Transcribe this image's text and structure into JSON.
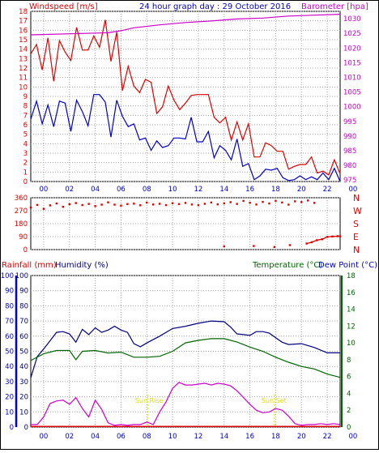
{
  "colors": {
    "frame": "#000000",
    "grid": "#a0a0a0",
    "wind_gust": "#e00000",
    "wind_avg": "#0000cc",
    "barometer": "#cc00cc",
    "direction": "#e00000",
    "rainfall": "#e00000",
    "humidity": "#000080",
    "temperature": "#006400",
    "dew_point": "#0000cc",
    "sun": "#dddd00",
    "blue_axis": "#0000dd",
    "green_axis": "#006400",
    "magenta_axis": "#cc00cc"
  },
  "chart_data": [
    {
      "type": "line",
      "title": "24 hour graph day : 29 October 2016",
      "ylabel_left": "Windspeed [m/s]",
      "ylabel_right": "Barometer [hpa]",
      "x_tick_labels": [
        "00",
        "02",
        "04",
        "06",
        "08",
        "10",
        "12",
        "14",
        "16",
        "18",
        "20",
        "22",
        "00"
      ],
      "y_left_ticks": [
        "0",
        "1",
        "2",
        "3",
        "4",
        "5",
        "6",
        "7",
        "8",
        "9",
        "10",
        "11",
        "12",
        "13",
        "14",
        "15",
        "16",
        "17",
        "18"
      ],
      "y_right_ticks": [
        "975",
        "980",
        "985",
        "990",
        "995",
        "1000",
        "1005",
        "1010",
        "1015",
        "1020",
        "1025",
        "1030"
      ],
      "ylim_left": [
        0,
        18
      ],
      "ylim_right": [
        974.5,
        1032.5
      ],
      "grid": true,
      "series": [
        {
          "key": "wind_gust",
          "values": [
            13.5,
            14.5,
            11.8,
            15.2,
            10.6,
            14.9,
            13.7,
            12.8,
            16.3,
            13.9,
            13.9,
            15.4,
            14.2,
            17.1,
            12.7,
            15.8,
            9.6,
            12.2,
            10.1,
            9.4,
            10.8,
            10.5,
            7.2,
            7.9,
            10.1,
            8.6,
            7.6,
            8.3,
            9.1,
            9.2,
            9.2,
            9.2,
            6.8,
            6.2,
            6.8,
            4.4,
            6.3,
            4.4,
            6.1,
            2.6,
            2.6,
            4.1,
            3.8,
            3.2,
            3.2,
            1.3,
            1.6,
            1.8,
            1.8,
            2.6,
            0.9,
            1.1,
            0.7,
            2.3,
            0.8
          ],
          "y_axis": "left"
        },
        {
          "key": "wind_avg",
          "values": [
            6.6,
            8.5,
            6.1,
            8.1,
            5.8,
            8.5,
            8.3,
            5.3,
            8.6,
            7.4,
            5.9,
            9.2,
            9.2,
            8.4,
            4.7,
            8.6,
            6.9,
            5.8,
            6.1,
            4.4,
            4.6,
            3.3,
            4.3,
            3.6,
            3.8,
            4.6,
            4.6,
            4.5,
            6.8,
            4.2,
            4.2,
            5.3,
            2.5,
            3.8,
            3.3,
            2.3,
            4.5,
            1.6,
            1.9,
            0.2,
            0.6,
            1.3,
            1.2,
            1.4,
            0.4,
            0.1,
            0.2,
            0.6,
            0.2,
            0.5,
            0.2,
            0.9,
            0.2,
            1.4,
            0.0
          ],
          "y_axis": "left"
        },
        {
          "key": "barometer",
          "x": [
            0.0,
            6.0,
            7.0,
            8.0,
            10.0,
            12.0,
            14.0,
            16.0,
            18.0,
            20.0,
            22.0,
            24.0
          ],
          "values": [
            1024.5,
            1025.2,
            1025.9,
            1026.9,
            1027.9,
            1028.7,
            1029.2,
            1029.9,
            1030.2,
            1030.9,
            1031.2,
            1031.5
          ],
          "y_axis": "right"
        }
      ]
    },
    {
      "type": "scatter",
      "ylabel_right": [
        "N",
        "W",
        "S",
        "E",
        "N"
      ],
      "y_ticks": [
        "360",
        "270",
        "180",
        "90",
        "0"
      ],
      "ylim": [
        0,
        360
      ],
      "grid": true,
      "series": [
        {
          "key": "wind_direction",
          "x": [
            0.0,
            0.5,
            1.0,
            1.5,
            2.0,
            2.5,
            3.0,
            3.5,
            4.0,
            4.5,
            5.0,
            5.5,
            6.0,
            6.5,
            7.0,
            7.5,
            8.0,
            8.5,
            9.0,
            9.5,
            10.0,
            10.5,
            11.0,
            11.5,
            12.0,
            12.5,
            13.0,
            13.5,
            14.0,
            14.5,
            15.0,
            15.5,
            16.0,
            16.5,
            17.0,
            17.5,
            18.0,
            18.5,
            19.0,
            19.5,
            20.0,
            20.5,
            21.0,
            21.5,
            22.0
          ],
          "values": [
            292,
            310,
            283,
            307,
            320,
            297,
            315,
            323,
            309,
            317,
            302,
            312,
            328,
            312,
            305,
            316,
            319,
            308,
            326,
            313,
            318,
            309,
            322,
            316,
            324,
            313,
            308,
            318,
            327,
            314,
            321,
            329,
            317,
            338,
            325,
            313,
            331,
            320,
            338,
            327,
            312,
            335,
            330,
            341,
            324
          ]
        },
        {
          "key": "wind_direction_low",
          "x": [
            15.0,
            17.3,
            18.9,
            20.1,
            21.4,
            21.8,
            22.2,
            22.6,
            23.0,
            23.4,
            23.8,
            24.0
          ],
          "values": [
            22,
            25,
            18,
            31,
            42,
            51,
            65,
            72,
            88,
            91,
            93,
            92
          ]
        }
      ]
    },
    {
      "type": "line",
      "ylabel_left": "Rainfall (mm)",
      "ylabel_left2": "Humidity (%)",
      "ylabel_right": "Temperature (°C)",
      "ylabel_right2": "Dew Point (°C)",
      "x_tick_labels": [
        "00",
        "02",
        "04",
        "06",
        "08",
        "10",
        "12",
        "14",
        "16",
        "18",
        "20",
        "22",
        "00"
      ],
      "y_left_ticks": [
        "0",
        "10",
        "20",
        "30",
        "40",
        "50",
        "60",
        "70",
        "80",
        "90",
        "100"
      ],
      "y_right_ticks": [
        "0",
        "2",
        "4",
        "6",
        "8",
        "10",
        "12",
        "14",
        "16",
        "18"
      ],
      "ylim_left": [
        0,
        100
      ],
      "ylim_right": [
        0,
        18
      ],
      "grid": true,
      "annotations": [
        {
          "label": "Sun Rise",
          "x": 9.1
        },
        {
          "label": "Sun Set",
          "x": 18.9
        }
      ],
      "series": [
        {
          "key": "rainfall",
          "x": [
            0.0,
            24.0
          ],
          "values": [
            0.4,
            0.4
          ],
          "y_axis": "left"
        },
        {
          "key": "humidity",
          "x": [
            0.0,
            0.5,
            1.0,
            1.5,
            2.0,
            2.5,
            3.0,
            3.5,
            4.0,
            4.5,
            5.0,
            5.5,
            6.0,
            6.5,
            7.0,
            7.5,
            8.0,
            8.5,
            9.0,
            10.0,
            11.0,
            12.0,
            13.0,
            14.0,
            15.0,
            15.5,
            16.0,
            16.5,
            17.0,
            17.5,
            18.0,
            18.5,
            19.0,
            19.5,
            20.0,
            21.0,
            22.0,
            23.0,
            24.0
          ],
          "values": [
            32.5,
            46.5,
            51.5,
            57.0,
            62.5,
            63.0,
            61.5,
            56.0,
            64.5,
            61.0,
            65.5,
            62.5,
            64.0,
            66.5,
            64.0,
            62.5,
            55.0,
            53.0,
            55.5,
            60.0,
            65.0,
            66.5,
            68.5,
            70.0,
            69.5,
            66.0,
            61.5,
            61.0,
            60.5,
            63.0,
            63.0,
            62.0,
            59.0,
            56.0,
            54.5,
            55.0,
            52.5,
            49.0,
            49.0
          ],
          "y_axis": "left"
        },
        {
          "key": "temperature",
          "x": [
            0.0,
            1.0,
            2.0,
            3.0,
            3.5,
            4.0,
            5.0,
            6.0,
            7.0,
            8.0,
            9.0,
            10.0,
            11.0,
            12.0,
            13.0,
            14.0,
            15.0,
            16.0,
            17.0,
            18.0,
            19.0,
            20.0,
            21.0,
            22.0,
            23.0,
            24.0
          ],
          "values": [
            7.9,
            8.7,
            9.1,
            9.1,
            8.0,
            9.0,
            9.1,
            8.8,
            8.9,
            8.3,
            8.3,
            8.4,
            9.0,
            10.0,
            10.3,
            10.5,
            10.5,
            10.1,
            9.5,
            9.0,
            8.3,
            7.7,
            7.2,
            6.9,
            6.3,
            5.9
          ],
          "y_axis": "right"
        },
        {
          "key": "dew_point",
          "x": [
            0.0,
            0.5,
            1.0,
            1.5,
            2.0,
            2.5,
            3.0,
            3.5,
            4.0,
            4.5,
            5.0,
            5.5,
            6.0,
            6.5,
            7.0,
            7.5,
            8.0,
            8.5,
            9.0,
            9.5,
            10.0,
            10.5,
            11.0,
            11.5,
            12.0,
            12.5,
            13.0,
            13.5,
            14.0,
            14.5,
            15.0,
            15.5,
            16.0,
            16.5,
            17.0,
            17.5,
            18.0,
            18.5,
            19.0,
            19.5,
            20.0,
            20.5,
            21.0,
            21.5,
            22.0,
            22.5,
            23.0,
            23.5,
            24.0
          ],
          "values": [
            0.3,
            0.3,
            1.2,
            2.8,
            3.1,
            3.2,
            2.7,
            3.5,
            2.2,
            1.2,
            3.2,
            2.1,
            0.5,
            0.2,
            0.3,
            0.2,
            0.3,
            0.3,
            0.6,
            0.3,
            1.8,
            3.0,
            4.6,
            5.3,
            5.0,
            5.0,
            5.1,
            5.2,
            5.0,
            5.2,
            5.1,
            4.9,
            4.3,
            3.5,
            2.7,
            2.0,
            1.7,
            1.8,
            2.2,
            2.0,
            1.3,
            0.4,
            0.2,
            0.3,
            0.3,
            0.4,
            0.3,
            0.4,
            0.3
          ],
          "y_axis": "right"
        }
      ]
    }
  ]
}
